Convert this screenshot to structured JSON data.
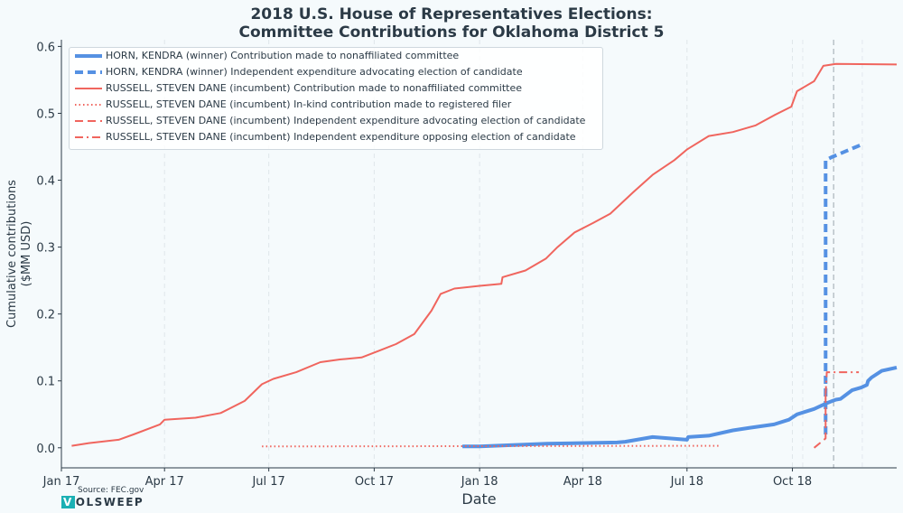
{
  "chart_data": {
    "type": "line",
    "title": "2018 U.S. House of Representatives Elections:",
    "subtitle": "Committee Contributions for Oklahoma District 5",
    "xlabel": "Date",
    "ylabel": "Cumulative contributions",
    "ylabel_unit": "($MM USD)",
    "xlim": [
      "2017-01-01",
      "2018-12-31"
    ],
    "ylim": [
      -0.03,
      0.61
    ],
    "x_ticks": [
      "2017-01-01",
      "2017-04-01",
      "2017-07-01",
      "2017-10-01",
      "2018-01-01",
      "2018-04-01",
      "2018-07-01",
      "2018-10-01"
    ],
    "x_tick_labels": [
      "Jan 17",
      "Apr 17",
      "Jul 17",
      "Oct 17",
      "Jan 18",
      "Apr 18",
      "Jul 18",
      "Oct 18"
    ],
    "y_ticks": [
      0.0,
      0.1,
      0.2,
      0.3,
      0.4,
      0.5,
      0.6
    ],
    "y_tick_labels": [
      "0.0",
      "0.1",
      "0.2",
      "0.3",
      "0.4",
      "0.5",
      "0.6"
    ],
    "election_date": "2018-11-06",
    "grid": true,
    "legend_position": "top-left",
    "series": [
      {
        "name": "HORN, KENDRA (winner) Contribution made to nonaffiliated committee",
        "color": "#5591e3",
        "line_style": "solid",
        "line_weight": "thick",
        "x": [
          "2017-12-17",
          "2018-01-01",
          "2018-03-01",
          "2018-05-01",
          "2018-05-08",
          "2018-06-01",
          "2018-07-01",
          "2018-07-02",
          "2018-07-20",
          "2018-08-10",
          "2018-08-25",
          "2018-09-15",
          "2018-09-28",
          "2018-10-05",
          "2018-10-20",
          "2018-10-30",
          "2018-11-05",
          "2018-11-08",
          "2018-11-12",
          "2018-11-22",
          "2018-11-30",
          "2018-12-05",
          "2018-12-06",
          "2018-12-09",
          "2018-12-18",
          "2018-12-31"
        ],
        "y": [
          0.002,
          0.002,
          0.006,
          0.008,
          0.009,
          0.016,
          0.012,
          0.016,
          0.018,
          0.026,
          0.03,
          0.035,
          0.042,
          0.05,
          0.058,
          0.066,
          0.07,
          0.072,
          0.073,
          0.086,
          0.09,
          0.094,
          0.1,
          0.105,
          0.115,
          0.12
        ]
      },
      {
        "name": "HORN, KENDRA (winner) Independent expenditure advocating election of candidate",
        "color": "#5591e3",
        "line_style": "dashed",
        "line_weight": "thick",
        "x": [
          "2018-10-30",
          "2018-10-30",
          "2018-11-05",
          "2018-11-30"
        ],
        "y": [
          0.02,
          0.43,
          0.435,
          0.453
        ]
      },
      {
        "name": "RUSSELL, STEVEN DANE (incumbent) Contribution made to nonaffiliated committee",
        "color": "#f0655e",
        "line_style": "solid",
        "line_weight": "normal",
        "x": [
          "2017-01-10",
          "2017-01-25",
          "2017-02-20",
          "2017-03-05",
          "2017-03-28",
          "2017-04-01",
          "2017-04-28",
          "2017-05-20",
          "2017-06-10",
          "2017-06-25",
          "2017-07-05",
          "2017-07-25",
          "2017-08-15",
          "2017-09-01",
          "2017-09-20",
          "2017-10-05",
          "2017-10-20",
          "2017-11-05",
          "2017-11-20",
          "2017-11-28",
          "2017-12-10",
          "2018-01-01",
          "2018-01-20",
          "2018-01-21",
          "2018-02-10",
          "2018-02-28",
          "2018-03-10",
          "2018-03-25",
          "2018-04-10",
          "2018-04-25",
          "2018-05-15",
          "2018-06-01",
          "2018-06-20",
          "2018-07-01",
          "2018-07-20",
          "2018-08-10",
          "2018-08-30",
          "2018-09-15",
          "2018-09-30",
          "2018-10-05",
          "2018-10-20",
          "2018-10-28",
          "2018-11-08",
          "2018-12-31"
        ],
        "y": [
          0.003,
          0.007,
          0.012,
          0.02,
          0.035,
          0.042,
          0.045,
          0.052,
          0.07,
          0.095,
          0.103,
          0.113,
          0.128,
          0.132,
          0.135,
          0.145,
          0.155,
          0.17,
          0.205,
          0.23,
          0.238,
          0.242,
          0.245,
          0.255,
          0.265,
          0.283,
          0.3,
          0.322,
          0.336,
          0.35,
          0.382,
          0.408,
          0.43,
          0.446,
          0.466,
          0.472,
          0.482,
          0.497,
          0.51,
          0.533,
          0.548,
          0.571,
          0.574,
          0.573
        ]
      },
      {
        "name": "RUSSELL, STEVEN DANE (incumbent) In-kind contribution made to registered filer",
        "color": "#f0655e",
        "line_style": "dotted",
        "line_weight": "normal",
        "x": [
          "2017-06-25",
          "2018-07-30"
        ],
        "y": [
          0.002,
          0.003
        ]
      },
      {
        "name": "RUSSELL, STEVEN DANE (incumbent) Independent expenditure advocating election of candidate",
        "color": "#f0655e",
        "line_style": "dashed",
        "line_weight": "normal",
        "x": [
          "2018-10-20",
          "2018-10-30",
          "2018-10-30"
        ],
        "y": [
          0.0,
          0.014,
          0.08
        ]
      },
      {
        "name": "RUSSELL, STEVEN DANE (incumbent) Independent expenditure opposing election of candidate",
        "color": "#f0655e",
        "line_style": "dashdot",
        "line_weight": "normal",
        "x": [
          "2018-10-30",
          "2018-10-31",
          "2018-11-08",
          "2018-11-28"
        ],
        "y": [
          0.08,
          0.113,
          0.113,
          0.113
        ]
      }
    ]
  },
  "source": "Source: FEC.gov",
  "logo": {
    "first": "V",
    "rest": "OLSWEEP"
  }
}
